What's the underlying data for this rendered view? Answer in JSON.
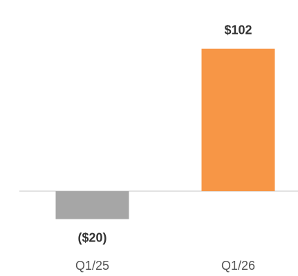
{
  "chart_data": {
    "type": "bar",
    "categories": [
      "Q1/25",
      "Q1/26"
    ],
    "values": [
      -20,
      102
    ],
    "value_labels": [
      "($20)",
      "$102"
    ],
    "colors": [
      "#a6a6a6",
      "#f79646"
    ],
    "ylim": [
      -40,
      130
    ]
  }
}
